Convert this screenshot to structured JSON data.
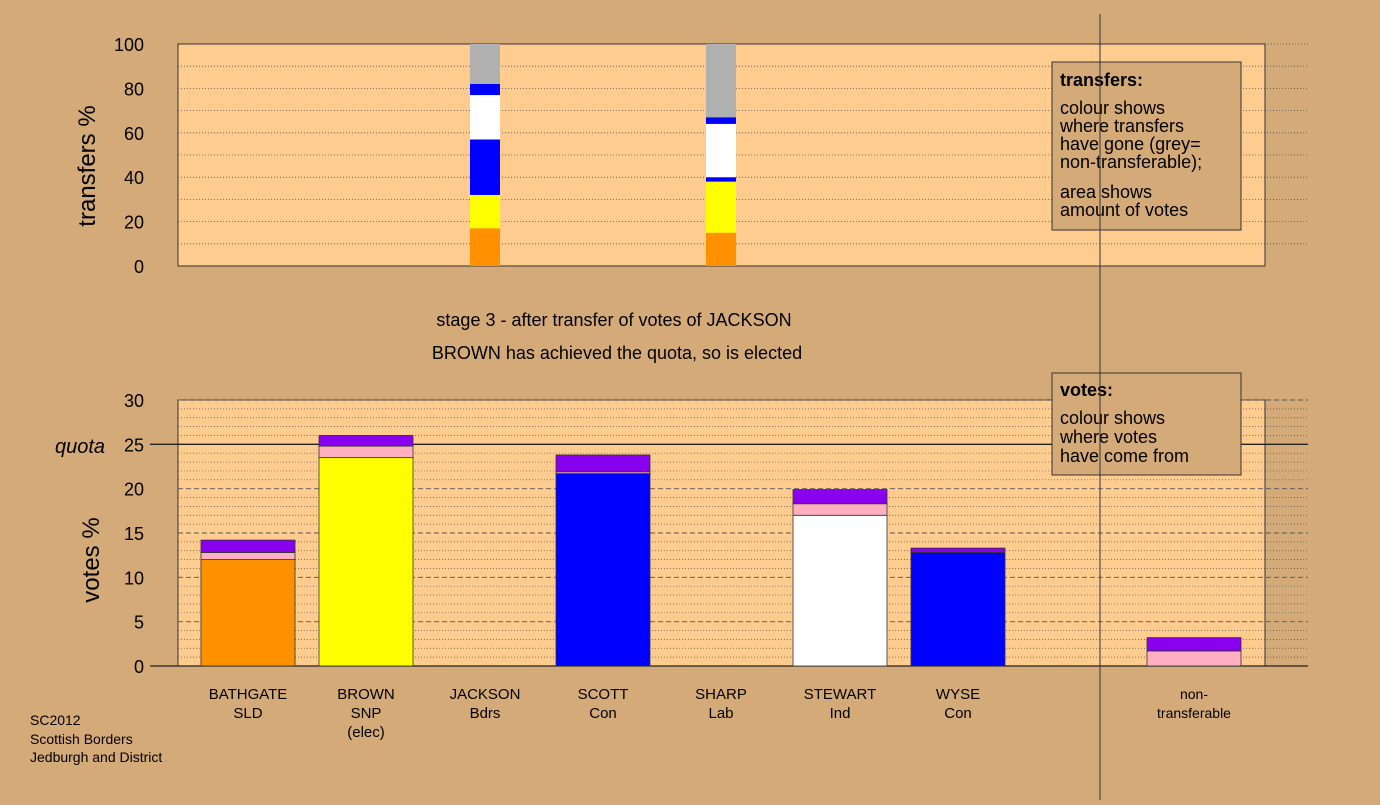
{
  "colors": {
    "background": "#d4aa78",
    "plot_bg": "#ffcc90",
    "BATHGATE": "#ff9000",
    "BROWN": "#ffff00",
    "SCOTT": "#0000ff",
    "STEWART": "#ffffff",
    "WYSE": "#0000ff",
    "SHARP": "#ff80a0",
    "JACKSON": "#8800ee",
    "extra_pink": "#ffb0c0",
    "non_transferable": "#b0b0b0"
  },
  "headline": {
    "line1": "stage 3 - after transfer of votes of JACKSON",
    "line2": "BROWN has achieved the quota, so is elected"
  },
  "footer": {
    "line1": "SC2012",
    "line2": "Scottish Borders",
    "line3": "Jedburgh and District"
  },
  "legend_transfers": {
    "title": "transfers:",
    "lines": [
      "colour shows",
      "where transfers",
      "have gone (grey=",
      "non-transferable);"
    ],
    "lines2": [
      "area shows",
      "amount of votes"
    ]
  },
  "legend_votes": {
    "title": "votes:",
    "lines": [
      "colour shows",
      "where votes",
      "have come from"
    ]
  },
  "chart_data": [
    {
      "type": "bar",
      "ylabel": "transfers %",
      "ylim": [
        0,
        100
      ],
      "yticks": [
        0,
        20,
        40,
        60,
        80,
        100
      ],
      "categories": [
        "BATHGATE SLD",
        "BROWN SNP (elec)",
        "JACKSON Bdrs",
        "SCOTT Con",
        "SHARP Lab",
        "STEWART Ind",
        "WYSE Con",
        "non-transferable"
      ],
      "stacks": [
        {
          "category": "JACKSON Bdrs",
          "segments": [
            {
              "color": "#ff9000",
              "from": 0,
              "to": 17
            },
            {
              "color": "#ffff00",
              "from": 17,
              "to": 32
            },
            {
              "color": "#0000ff",
              "from": 32,
              "to": 57
            },
            {
              "color": "#ffffff",
              "from": 57,
              "to": 77
            },
            {
              "color": "#0000ff",
              "from": 77,
              "to": 82
            },
            {
              "color": "#b0b0b0",
              "from": 82,
              "to": 100
            }
          ]
        },
        {
          "category": "SHARP Lab",
          "segments": [
            {
              "color": "#ff9000",
              "from": 0,
              "to": 15
            },
            {
              "color": "#ffff00",
              "from": 15,
              "to": 38
            },
            {
              "color": "#0000ff",
              "from": 38,
              "to": 40
            },
            {
              "color": "#ffffff",
              "from": 40,
              "to": 64
            },
            {
              "color": "#0000ff",
              "from": 64,
              "to": 67
            },
            {
              "color": "#b0b0b0",
              "from": 67,
              "to": 100
            }
          ]
        }
      ],
      "grid": true
    },
    {
      "type": "bar",
      "ylabel": "votes %",
      "ylim": [
        0,
        30
      ],
      "yticks": [
        0,
        5,
        10,
        15,
        20,
        25,
        30
      ],
      "quota": 25,
      "quota_label": "quota",
      "categories": [
        {
          "name": "BATHGATE",
          "party": "SLD",
          "note": ""
        },
        {
          "name": "BROWN",
          "party": "SNP",
          "note": "(elec)"
        },
        {
          "name": "JACKSON",
          "party": "Bdrs",
          "note": ""
        },
        {
          "name": "SCOTT",
          "party": "Con",
          "note": ""
        },
        {
          "name": "SHARP",
          "party": "Lab",
          "note": ""
        },
        {
          "name": "STEWART",
          "party": "Ind",
          "note": ""
        },
        {
          "name": "WYSE",
          "party": "Con",
          "note": ""
        },
        {
          "name": "non-",
          "party": "transferable",
          "note": ""
        }
      ],
      "stacks": [
        {
          "category": "BATHGATE",
          "segments": [
            {
              "color": "#ff9000",
              "from": 0,
              "to": 12.0
            },
            {
              "color": "#ffb0c0",
              "from": 12.0,
              "to": 12.8
            },
            {
              "color": "#8800ee",
              "from": 12.8,
              "to": 14.2
            }
          ]
        },
        {
          "category": "BROWN",
          "segments": [
            {
              "color": "#ffff00",
              "from": 0,
              "to": 23.5
            },
            {
              "color": "#ffb0c0",
              "from": 23.5,
              "to": 24.8
            },
            {
              "color": "#8800ee",
              "from": 24.8,
              "to": 26.0
            }
          ]
        },
        {
          "category": "JACKSON",
          "segments": []
        },
        {
          "category": "SCOTT",
          "segments": [
            {
              "color": "#0000ff",
              "from": 0,
              "to": 21.7
            },
            {
              "color": "#ffb0c0",
              "from": 21.7,
              "to": 21.9
            },
            {
              "color": "#8800ee",
              "from": 21.9,
              "to": 23.8
            }
          ]
        },
        {
          "category": "SHARP",
          "segments": []
        },
        {
          "category": "STEWART",
          "segments": [
            {
              "color": "#ffffff",
              "from": 0,
              "to": 17.0
            },
            {
              "color": "#ffb0c0",
              "from": 17.0,
              "to": 18.3
            },
            {
              "color": "#8800ee",
              "from": 18.3,
              "to": 19.9
            }
          ]
        },
        {
          "category": "WYSE",
          "segments": [
            {
              "color": "#0000ff",
              "from": 0,
              "to": 12.8
            },
            {
              "color": "#8800ee",
              "from": 12.8,
              "to": 13.3
            }
          ]
        },
        {
          "category": "non-transferable",
          "segments": [
            {
              "color": "#ffb0c0",
              "from": 0,
              "to": 1.7
            },
            {
              "color": "#8800ee",
              "from": 1.7,
              "to": 3.2
            }
          ]
        }
      ],
      "grid": true
    }
  ]
}
